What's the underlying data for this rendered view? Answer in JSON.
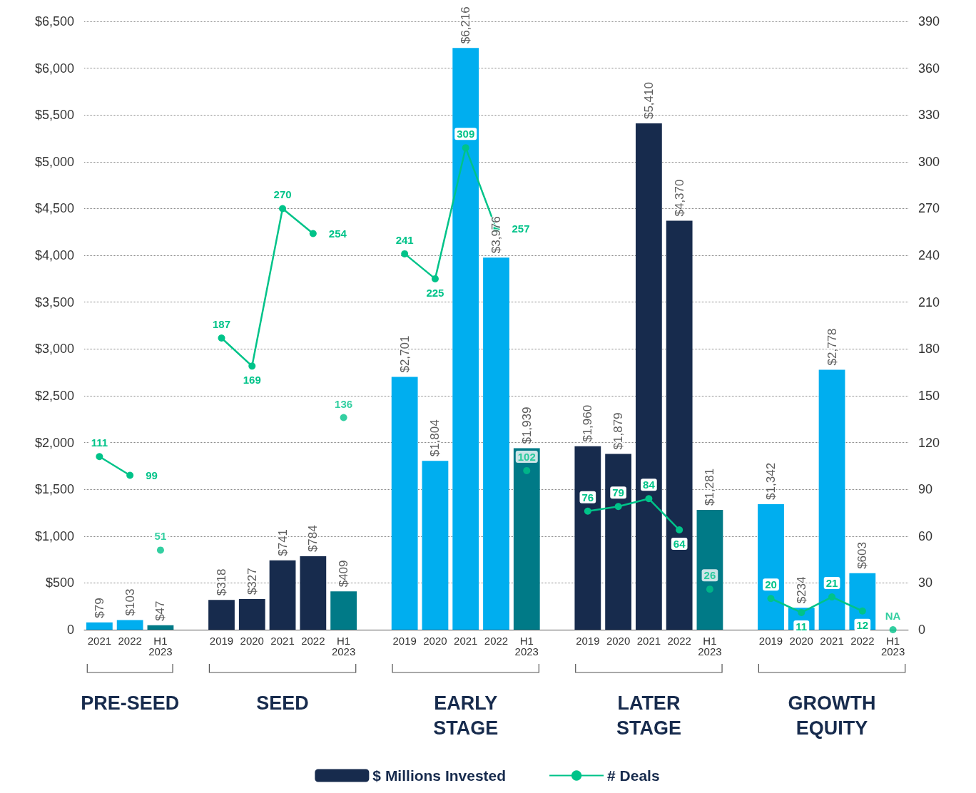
{
  "chart_data": {
    "type": "bar",
    "categories": [
      "2021",
      "2022",
      "H1\n2023",
      null,
      "2019",
      "2020",
      "2021",
      "2022",
      "H1\n2023",
      null,
      "2019",
      "2020",
      "2021",
      "2022",
      "H1\n2023",
      null,
      "2019",
      "2020",
      "2021",
      "2022",
      "H1\n2023",
      null,
      "2019",
      "2020",
      "2021",
      "2022",
      "H1\n2023"
    ],
    "ylim": [
      0,
      6500
    ],
    "yticks": [
      {
        "value": 0,
        "label": "0"
      },
      {
        "value": 500,
        "label": "$500"
      },
      {
        "value": 1000,
        "label": "$1,000"
      },
      {
        "value": 1500,
        "label": "$1,500"
      },
      {
        "value": 2000,
        "label": "$2,000"
      },
      {
        "value": 2500,
        "label": "$2,500"
      },
      {
        "value": 3000,
        "label": "$3,000"
      },
      {
        "value": 3500,
        "label": "$3,500"
      },
      {
        "value": 4000,
        "label": "$4,000"
      },
      {
        "value": 4500,
        "label": "$4,500"
      },
      {
        "value": 5000,
        "label": "$5,000"
      },
      {
        "value": 5500,
        "label": "$5,500"
      },
      {
        "value": 6000,
        "label": "$6,000"
      },
      {
        "value": 6500,
        "label": "$6,500"
      }
    ],
    "y2lim": [
      0,
      390
    ],
    "y2ticks": [
      0,
      30,
      60,
      90,
      120,
      150,
      180,
      210,
      240,
      270,
      300,
      330,
      360,
      390
    ],
    "grid": "y",
    "legend": "bottom",
    "marker": "circle",
    "line_style": "solid",
    "annotations": [
      "PRE-SEED",
      "SEED",
      "EARLY\nSTAGE",
      "LATER\nSTAGE",
      "GROWTH\nEQUITY"
    ],
    "series": [
      {
        "name": "$ Millions Invested",
        "color": "#172b4d",
        "colors": [
          "#00aeef",
          "#00aeef",
          "#007a87",
          null,
          "#172b4d",
          "#172b4d",
          "#172b4d",
          "#172b4d",
          "#007a87",
          null,
          "#00aeef",
          "#00aeef",
          "#00aeef",
          "#00aeef",
          "#007a87",
          null,
          "#172b4d",
          "#172b4d",
          "#172b4d",
          "#172b4d",
          "#007a87",
          null,
          "#00aeef",
          "#00aeef",
          "#00aeef",
          "#00aeef",
          null
        ],
        "values": [
          79,
          103,
          47,
          null,
          318,
          327,
          741,
          784,
          409,
          null,
          2701,
          1804,
          6216,
          3976,
          1939,
          null,
          1960,
          1879,
          5410,
          4370,
          1281,
          null,
          1342,
          234,
          2778,
          603,
          null
        ],
        "value_labels": [
          "$79",
          "$103",
          "$47",
          null,
          "$318",
          "$327",
          "$741",
          "$784",
          "$409",
          null,
          "$2,701",
          "$1,804",
          "$6,216",
          "$3,976",
          "$1,939",
          null,
          "$1,960",
          "$1,879",
          "$5,410",
          "$4,370",
          "$1,281",
          null,
          "$1,342",
          "$234",
          "$2,778",
          "$603",
          null
        ]
      },
      {
        "name": "# Deals",
        "type": "line",
        "axis": "y2",
        "color": "#00c389",
        "values": [
          111,
          99,
          null,
          null,
          187,
          169,
          270,
          254,
          null,
          null,
          241,
          225,
          309,
          257,
          null,
          null,
          76,
          79,
          84,
          64,
          null,
          null,
          20,
          11,
          21,
          12,
          null
        ],
        "value_labels": [
          "111",
          "99",
          null,
          null,
          "187",
          "169",
          "270",
          "254",
          null,
          null,
          "241",
          "225",
          "309",
          "257",
          null,
          null,
          "76",
          "79",
          "84",
          "64",
          null,
          null,
          "20",
          "11",
          "21",
          "12",
          null
        ]
      },
      {
        "type": "scatter",
        "axis": "y2",
        "color": "#00c389",
        "values": [
          null,
          null,
          51,
          null,
          null,
          null,
          null,
          null,
          136,
          null,
          null,
          null,
          null,
          null,
          102,
          null,
          null,
          null,
          null,
          null,
          26,
          null,
          null,
          null,
          null,
          null,
          0
        ],
        "value_labels": [
          null,
          null,
          "51",
          null,
          null,
          null,
          null,
          null,
          "136",
          null,
          null,
          null,
          null,
          null,
          "102",
          null,
          null,
          null,
          null,
          null,
          "26",
          null,
          null,
          null,
          null,
          null,
          "NA"
        ]
      }
    ]
  }
}
